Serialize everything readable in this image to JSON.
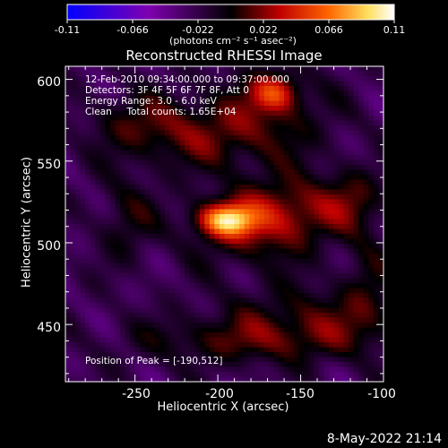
{
  "chart_data": {
    "type": "heatmap",
    "title": "Reconstructed RHESSI Image",
    "xlabel": "Heliocentric X (arcsec)",
    "ylabel": "Heliocentric Y (arcsec)",
    "xlim": [
      -292,
      -100
    ],
    "ylim": [
      415,
      608
    ],
    "x_ticks": [
      "-250",
      "-200",
      "-150",
      "-100"
    ],
    "x_tick_values": [
      -250,
      -200,
      -150,
      -100
    ],
    "y_ticks": [
      "450",
      "500",
      "550",
      "600"
    ],
    "y_tick_values": [
      450,
      500,
      550,
      600
    ],
    "colorbar": {
      "ticks": [
        "-0.11",
        "-0.066",
        "-0.022",
        "0.022",
        "0.066",
        "0.11"
      ],
      "tick_values": [
        -0.11,
        -0.066,
        -0.022,
        0.022,
        0.066,
        0.11
      ],
      "range": [
        -0.11,
        0.11
      ],
      "unit": "(photons cm⁻² s⁻¹ asec⁻²)",
      "colormap": [
        "#0000ff",
        "#7f00b0",
        "#000000",
        "#c00000",
        "#ff6600",
        "#ffe060",
        "#ffffff"
      ]
    },
    "annotations": [
      "12-Feb-2010 09:34:00.000 to 09:37:00.000",
      "Detectors: 3F 4F 5F 6F 7F 8F, Att 0",
      "Energy Range: 3.0 - 6.0 keV",
      "Clean     Total counts: 1.65E+04"
    ],
    "peak_label": "Position of Peak = [-190,512]",
    "peak_position": [
      -190,
      512
    ],
    "peak_value": 0.11,
    "sources": [
      {
        "x": -195,
        "y": 514,
        "sx": 12,
        "sy": 7,
        "amp": 0.09
      },
      {
        "x": -180,
        "y": 510,
        "sx": 24,
        "sy": 16,
        "amp": 0.04
      },
      {
        "x": -155,
        "y": 520,
        "sx": 18,
        "sy": 14,
        "amp": 0.035
      },
      {
        "x": -120,
        "y": 525,
        "sx": 14,
        "sy": 14,
        "amp": 0.035
      },
      {
        "x": -165,
        "y": 592,
        "sx": 10,
        "sy": 8,
        "amp": 0.06
      },
      {
        "x": -175,
        "y": 575,
        "sx": 28,
        "sy": 20,
        "amp": 0.03
      },
      {
        "x": -220,
        "y": 565,
        "sx": 30,
        "sy": 14,
        "amp": 0.028
      },
      {
        "x": -250,
        "y": 575,
        "sx": 20,
        "sy": 12,
        "amp": 0.02
      },
      {
        "x": -255,
        "y": 515,
        "sx": 12,
        "sy": 18,
        "amp": 0.025
      },
      {
        "x": -140,
        "y": 455,
        "sx": 40,
        "sy": 14,
        "amp": 0.028
      },
      {
        "x": -180,
        "y": 440,
        "sx": 50,
        "sy": 10,
        "amp": 0.03
      },
      {
        "x": -110,
        "y": 480,
        "sx": 10,
        "sy": 20,
        "amp": 0.02
      }
    ]
  },
  "footer": {
    "date": "8-May-2022 21:14"
  }
}
